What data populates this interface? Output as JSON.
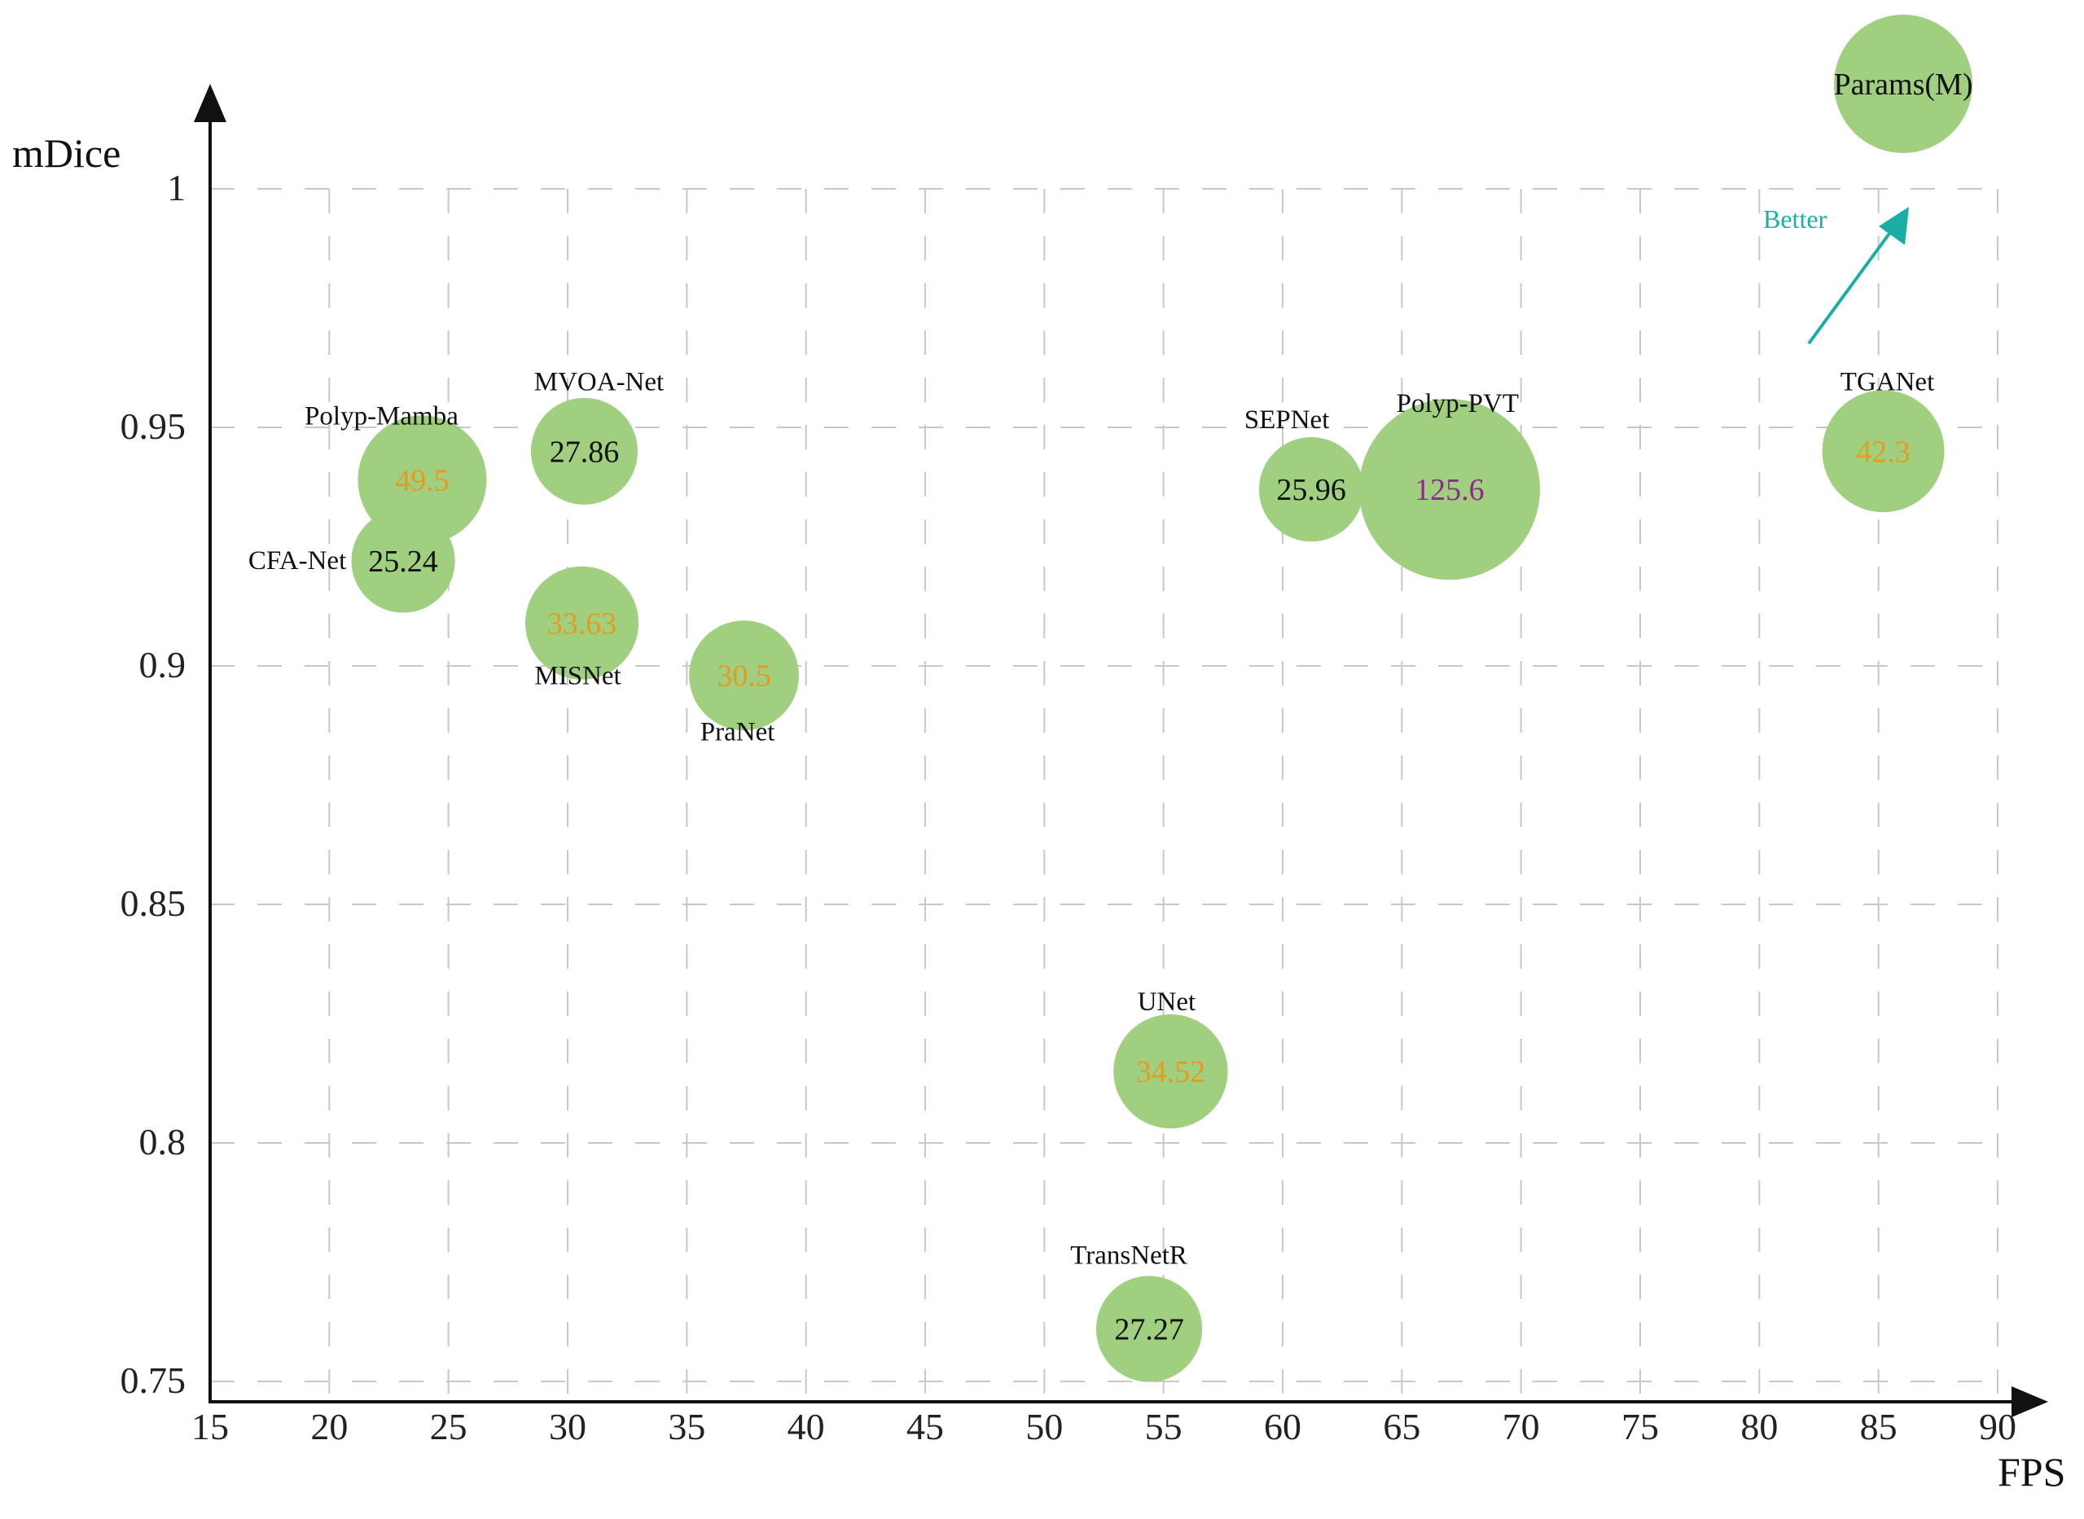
{
  "chart_data": {
    "type": "scatter",
    "subtype": "bubble",
    "title": "",
    "xlabel": "FPS",
    "ylabel": "mDice",
    "xlim": [
      15,
      90
    ],
    "ylim": [
      0.75,
      1
    ],
    "xticks": [
      "15",
      "20",
      "25",
      "30",
      "35",
      "40",
      "45",
      "50",
      "55",
      "60",
      "65",
      "70",
      "75",
      "80",
      "85",
      "90"
    ],
    "yticks": [
      "0.75",
      "0.8",
      "0.85",
      "0.9",
      "0.95",
      "1"
    ],
    "grid": true,
    "size_legend": {
      "label": "Params(M)",
      "placement": "top-right"
    },
    "annotation": {
      "text": "Better",
      "color": "#1aaea7"
    },
    "bubble_color": "#9fcf7f",
    "points": [
      {
        "name": "Polyp-Mamba",
        "fps": 23.9,
        "mdice": 0.939,
        "params": "49.5",
        "size": 49.5,
        "label_color": "#e89a1e"
      },
      {
        "name": "CFA-Net",
        "fps": 23.1,
        "mdice": 0.922,
        "params": "25.24",
        "size": 25.24,
        "label_color": "#111111"
      },
      {
        "name": "MVOA-Net",
        "fps": 30.7,
        "mdice": 0.945,
        "params": "27.86",
        "size": 27.86,
        "label_color": "#111111"
      },
      {
        "name": "MISNet",
        "fps": 30.6,
        "mdice": 0.909,
        "params": "33.63",
        "size": 33.63,
        "label_color": "#e89a1e"
      },
      {
        "name": "PraNet",
        "fps": 37.4,
        "mdice": 0.898,
        "params": "30.5",
        "size": 30.5,
        "label_color": "#e89a1e"
      },
      {
        "name": "UNet",
        "fps": 55.3,
        "mdice": 0.815,
        "params": "34.52",
        "size": 34.52,
        "label_color": "#e89a1e"
      },
      {
        "name": "TransNetR",
        "fps": 54.4,
        "mdice": 0.761,
        "params": "27.27",
        "size": 27.27,
        "label_color": "#111111"
      },
      {
        "name": "SEPNet",
        "fps": 61.2,
        "mdice": 0.937,
        "params": "25.96",
        "size": 25.96,
        "label_color": "#111111"
      },
      {
        "name": "Polyp-PVT",
        "fps": 67.0,
        "mdice": 0.937,
        "params": "125.6",
        "size": 125.6,
        "label_color": "#8e2a8e"
      },
      {
        "name": "TGANet",
        "fps": 85.2,
        "mdice": 0.945,
        "params": "42.3",
        "size": 42.3,
        "label_color": "#e89a1e"
      }
    ]
  }
}
